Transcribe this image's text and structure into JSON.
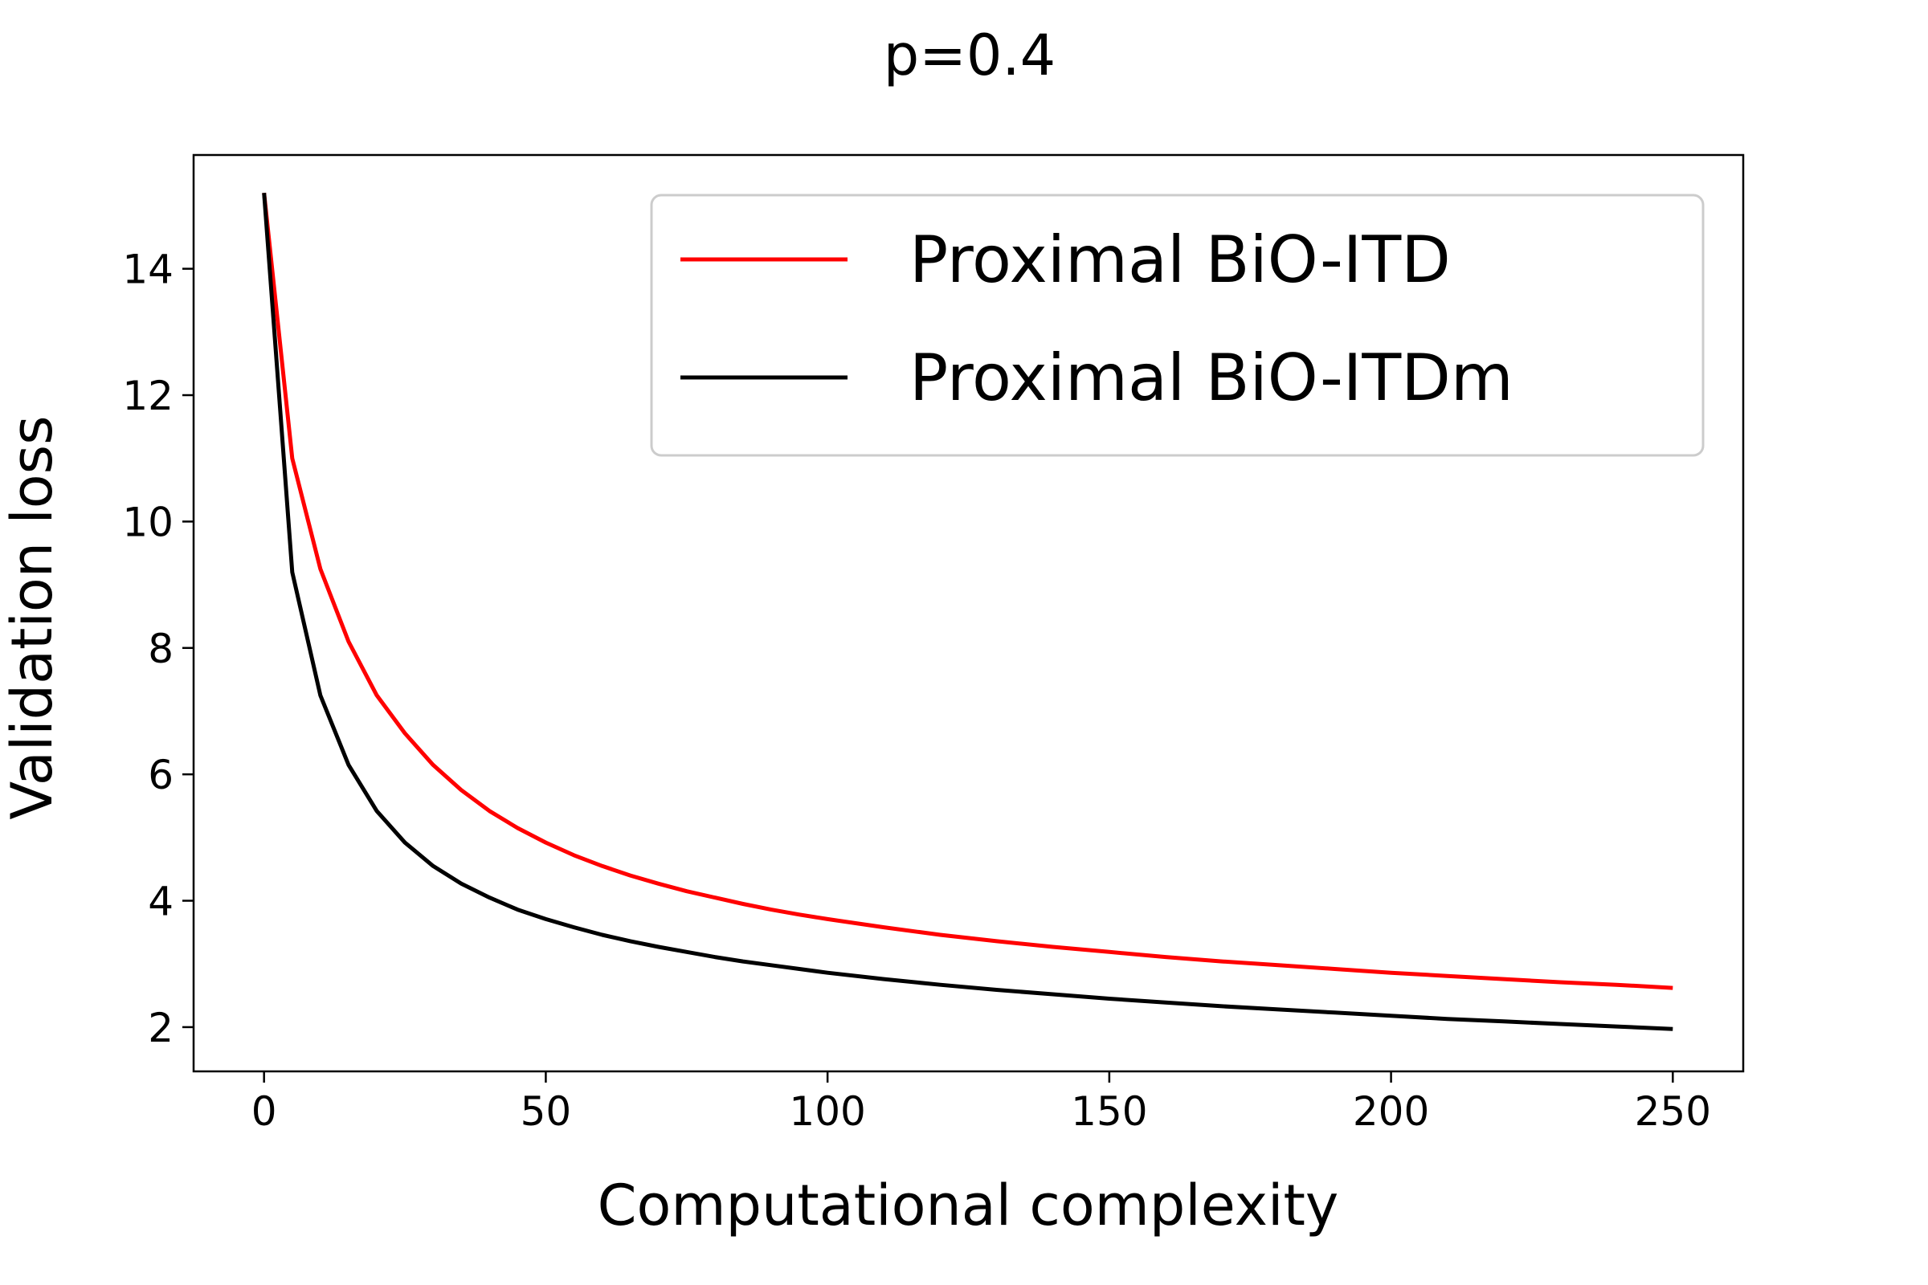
{
  "chart_data": {
    "type": "line",
    "title": "p=0.4",
    "xlabel": "Computational complexity",
    "ylabel": "Validation loss",
    "xlim": [
      -12.5,
      262.5
    ],
    "ylim": [
      1.3,
      15.8
    ],
    "xticks": [
      0,
      50,
      100,
      150,
      200,
      250
    ],
    "yticks": [
      2,
      4,
      6,
      8,
      10,
      12,
      14
    ],
    "grid": false,
    "legend_position": "top-right",
    "series": [
      {
        "name": "Proximal BiO-ITD",
        "color": "#ff0000",
        "x": [
          0,
          5,
          10,
          15,
          20,
          25,
          30,
          35,
          40,
          45,
          50,
          55,
          60,
          65,
          70,
          75,
          80,
          85,
          90,
          95,
          100,
          110,
          120,
          130,
          140,
          150,
          160,
          170,
          180,
          190,
          200,
          210,
          220,
          230,
          240,
          250
        ],
        "y": [
          15.2,
          11.0,
          9.25,
          8.1,
          7.25,
          6.65,
          6.15,
          5.75,
          5.42,
          5.15,
          4.92,
          4.72,
          4.55,
          4.4,
          4.27,
          4.15,
          4.05,
          3.95,
          3.86,
          3.78,
          3.71,
          3.58,
          3.46,
          3.36,
          3.27,
          3.19,
          3.11,
          3.04,
          2.98,
          2.92,
          2.86,
          2.81,
          2.76,
          2.71,
          2.67,
          2.62
        ]
      },
      {
        "name": "Proximal BiO-ITDm",
        "color": "#000000",
        "x": [
          0,
          5,
          10,
          15,
          20,
          25,
          30,
          35,
          40,
          45,
          50,
          55,
          60,
          65,
          70,
          75,
          80,
          85,
          90,
          95,
          100,
          110,
          120,
          130,
          140,
          150,
          160,
          170,
          180,
          190,
          200,
          210,
          220,
          230,
          240,
          250
        ],
        "y": [
          15.2,
          9.2,
          7.25,
          6.15,
          5.42,
          4.92,
          4.55,
          4.27,
          4.05,
          3.86,
          3.71,
          3.58,
          3.46,
          3.36,
          3.27,
          3.19,
          3.11,
          3.04,
          2.98,
          2.92,
          2.86,
          2.76,
          2.67,
          2.59,
          2.52,
          2.45,
          2.39,
          2.33,
          2.28,
          2.23,
          2.18,
          2.13,
          2.09,
          2.05,
          2.01,
          1.97
        ]
      }
    ]
  }
}
